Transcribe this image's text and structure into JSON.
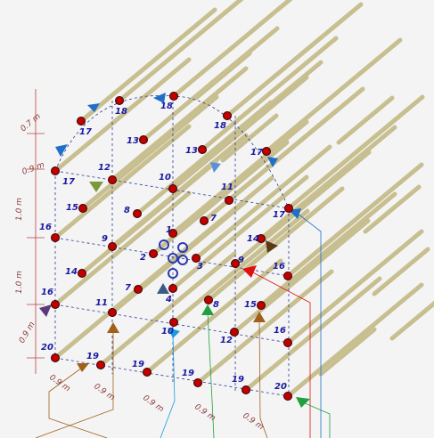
{
  "nodes": [
    {
      "label": "17"
    },
    {
      "label": "16"
    },
    {
      "label": "16"
    },
    {
      "label": "20"
    },
    {
      "label": "17"
    },
    {
      "label": "18"
    },
    {
      "label": "18"
    },
    {
      "label": "18"
    },
    {
      "label": "17"
    },
    {
      "label": "13"
    },
    {
      "label": "13"
    },
    {
      "label": "12"
    },
    {
      "label": "15"
    },
    {
      "label": "9"
    },
    {
      "label": "14"
    },
    {
      "label": "11"
    },
    {
      "label": "19"
    },
    {
      "label": "8"
    },
    {
      "label": "10"
    },
    {
      "label": "11"
    },
    {
      "label": "7"
    },
    {
      "label": "1"
    },
    {
      "label": "2"
    },
    {
      "label": "3"
    },
    {
      "label": "7"
    },
    {
      "label": "4"
    },
    {
      "label": "8"
    },
    {
      "label": "10"
    },
    {
      "label": "12"
    },
    {
      "label": "16"
    },
    {
      "label": "9"
    },
    {
      "label": "14"
    },
    {
      "label": "17"
    },
    {
      "label": "15"
    },
    {
      "label": "16"
    },
    {
      "label": "19"
    },
    {
      "label": "19"
    },
    {
      "label": "19"
    },
    {
      "label": "20"
    }
  ],
  "dimensions": [
    {
      "label": "0.7 m"
    },
    {
      "label": "0.9 m"
    },
    {
      "label": "1.0 m"
    },
    {
      "label": "1.0 m"
    },
    {
      "label": "0.9 m"
    },
    {
      "label": "0.9 m"
    },
    {
      "label": "0.9 m"
    },
    {
      "label": "0.9 m"
    },
    {
      "label": "0.9 m"
    },
    {
      "label": "0.9 m"
    }
  ]
}
